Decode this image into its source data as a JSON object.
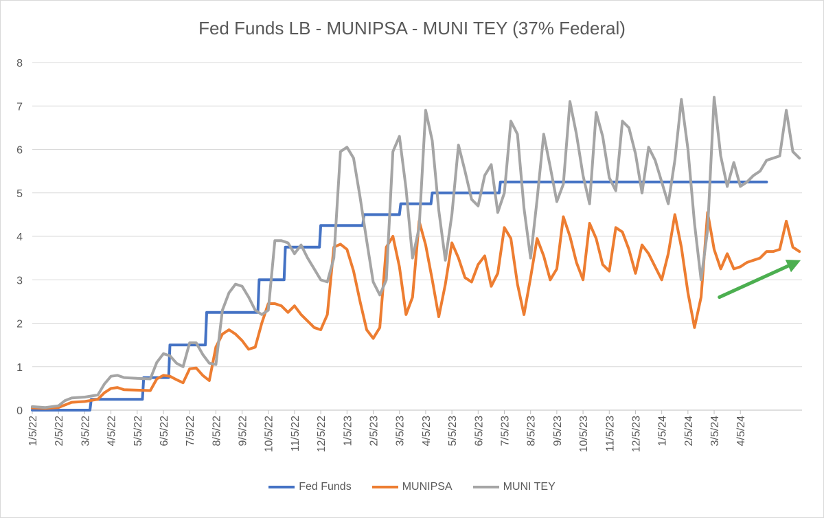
{
  "chart_data": {
    "type": "line",
    "title": "Fed Funds LB - MUNIPSA - MUNI TEY (37% Federal)",
    "xlabel": "",
    "ylabel": "",
    "ylim": [
      0,
      8
    ],
    "yticks": [
      "0",
      "1",
      "2",
      "3",
      "4",
      "5",
      "6",
      "7",
      "8"
    ],
    "xticks": [
      "1/5/22",
      "2/5/22",
      "3/5/22",
      "4/5/22",
      "5/5/22",
      "6/5/22",
      "7/5/22",
      "8/5/22",
      "9/5/22",
      "10/5/22",
      "11/5/22",
      "12/5/22",
      "1/5/23",
      "2/5/23",
      "3/5/23",
      "4/5/23",
      "5/5/23",
      "6/5/23",
      "7/5/23",
      "8/5/23",
      "9/5/23",
      "10/5/23",
      "11/5/23",
      "12/5/23",
      "1/5/24",
      "2/5/24",
      "3/5/24",
      "4/5/24"
    ],
    "x_unit": "months since 1/5/22 (tick index)",
    "grid": true,
    "legend_position": "bottom",
    "series": [
      {
        "name": "Fed Funds",
        "color": "#4472C4",
        "points": [
          [
            0,
            0
          ],
          [
            2.2,
            0
          ],
          [
            2.25,
            0.25
          ],
          [
            4,
            0.25
          ],
          [
            4.2,
            0.25
          ],
          [
            4.25,
            0.75
          ],
          [
            5.2,
            0.75
          ],
          [
            5.25,
            1.5
          ],
          [
            6.6,
            1.5
          ],
          [
            6.65,
            2.25
          ],
          [
            8.6,
            2.25
          ],
          [
            8.65,
            3.0
          ],
          [
            9.6,
            3.0
          ],
          [
            9.65,
            3.75
          ],
          [
            10.95,
            3.75
          ],
          [
            11.0,
            4.25
          ],
          [
            12.6,
            4.25
          ],
          [
            12.65,
            4.5
          ],
          [
            14.0,
            4.5
          ],
          [
            14.05,
            4.75
          ],
          [
            15.2,
            4.75
          ],
          [
            15.25,
            5.0
          ],
          [
            17.8,
            5.0
          ],
          [
            17.85,
            5.25
          ],
          [
            28.0,
            5.25
          ]
        ]
      },
      {
        "name": "MUNIPSA",
        "color": "#ED7D31",
        "points": [
          [
            0,
            0.05
          ],
          [
            0.5,
            0.04
          ],
          [
            1.0,
            0.06
          ],
          [
            1.5,
            0.18
          ],
          [
            2.0,
            0.2
          ],
          [
            2.5,
            0.25
          ],
          [
            2.75,
            0.4
          ],
          [
            3.0,
            0.5
          ],
          [
            3.25,
            0.52
          ],
          [
            3.5,
            0.47
          ],
          [
            4.0,
            0.46
          ],
          [
            4.5,
            0.45
          ],
          [
            4.75,
            0.72
          ],
          [
            5.0,
            0.8
          ],
          [
            5.25,
            0.78
          ],
          [
            5.5,
            0.7
          ],
          [
            5.75,
            0.63
          ],
          [
            6.0,
            0.95
          ],
          [
            6.25,
            0.97
          ],
          [
            6.5,
            0.8
          ],
          [
            6.75,
            0.68
          ],
          [
            7.0,
            1.45
          ],
          [
            7.25,
            1.75
          ],
          [
            7.5,
            1.85
          ],
          [
            7.75,
            1.75
          ],
          [
            8.0,
            1.6
          ],
          [
            8.25,
            1.4
          ],
          [
            8.5,
            1.45
          ],
          [
            8.75,
            2.0
          ],
          [
            9.0,
            2.45
          ],
          [
            9.25,
            2.45
          ],
          [
            9.5,
            2.4
          ],
          [
            9.75,
            2.25
          ],
          [
            10.0,
            2.4
          ],
          [
            10.25,
            2.2
          ],
          [
            10.5,
            2.05
          ],
          [
            10.75,
            1.9
          ],
          [
            11.0,
            1.85
          ],
          [
            11.25,
            2.2
          ],
          [
            11.5,
            3.75
          ],
          [
            11.75,
            3.82
          ],
          [
            12.0,
            3.7
          ],
          [
            12.25,
            3.2
          ],
          [
            12.5,
            2.5
          ],
          [
            12.75,
            1.85
          ],
          [
            13.0,
            1.65
          ],
          [
            13.25,
            1.9
          ],
          [
            13.5,
            3.75
          ],
          [
            13.75,
            4.0
          ],
          [
            14.0,
            3.3
          ],
          [
            14.25,
            2.2
          ],
          [
            14.5,
            2.6
          ],
          [
            14.75,
            4.35
          ],
          [
            15.0,
            3.8
          ],
          [
            15.25,
            3.0
          ],
          [
            15.5,
            2.15
          ],
          [
            15.75,
            2.9
          ],
          [
            16.0,
            3.85
          ],
          [
            16.25,
            3.5
          ],
          [
            16.5,
            3.05
          ],
          [
            16.75,
            2.95
          ],
          [
            17.0,
            3.35
          ],
          [
            17.25,
            3.55
          ],
          [
            17.5,
            2.85
          ],
          [
            17.75,
            3.15
          ],
          [
            18.0,
            4.2
          ],
          [
            18.25,
            3.95
          ],
          [
            18.5,
            2.9
          ],
          [
            18.75,
            2.2
          ],
          [
            19.0,
            3.05
          ],
          [
            19.25,
            3.95
          ],
          [
            19.5,
            3.55
          ],
          [
            19.75,
            3.0
          ],
          [
            20.0,
            3.25
          ],
          [
            20.25,
            4.45
          ],
          [
            20.5,
            4.0
          ],
          [
            20.75,
            3.4
          ],
          [
            21.0,
            3.0
          ],
          [
            21.25,
            4.3
          ],
          [
            21.5,
            3.95
          ],
          [
            21.75,
            3.35
          ],
          [
            22.0,
            3.2
          ],
          [
            22.25,
            4.2
          ],
          [
            22.5,
            4.1
          ],
          [
            22.75,
            3.7
          ],
          [
            23.0,
            3.15
          ],
          [
            23.25,
            3.8
          ],
          [
            23.5,
            3.6
          ],
          [
            23.75,
            3.3
          ],
          [
            24.0,
            3.0
          ],
          [
            24.25,
            3.6
          ],
          [
            24.5,
            4.5
          ],
          [
            24.75,
            3.75
          ],
          [
            25.0,
            2.7
          ],
          [
            25.25,
            1.9
          ],
          [
            25.5,
            2.6
          ],
          [
            25.75,
            4.55
          ],
          [
            26.0,
            3.7
          ],
          [
            26.25,
            3.25
          ],
          [
            26.5,
            3.6
          ],
          [
            26.75,
            3.25
          ],
          [
            27.0,
            3.3
          ],
          [
            27.25,
            3.4
          ],
          [
            27.5,
            3.45
          ],
          [
            27.75,
            3.5
          ],
          [
            28.0,
            3.65
          ],
          [
            28.25,
            3.65
          ],
          [
            28.5,
            3.7
          ],
          [
            28.75,
            4.35
          ],
          [
            29.0,
            3.75
          ],
          [
            29.25,
            3.65
          ]
        ]
      },
      {
        "name": "MUNI TEY",
        "color": "#A5A5A5",
        "points": [
          [
            0,
            0.08
          ],
          [
            0.5,
            0.06
          ],
          [
            1.0,
            0.1
          ],
          [
            1.25,
            0.22
          ],
          [
            1.5,
            0.28
          ],
          [
            2.0,
            0.3
          ],
          [
            2.5,
            0.35
          ],
          [
            2.75,
            0.6
          ],
          [
            3.0,
            0.78
          ],
          [
            3.25,
            0.8
          ],
          [
            3.5,
            0.75
          ],
          [
            4.0,
            0.73
          ],
          [
            4.5,
            0.72
          ],
          [
            4.75,
            1.1
          ],
          [
            5.0,
            1.3
          ],
          [
            5.25,
            1.25
          ],
          [
            5.5,
            1.08
          ],
          [
            5.75,
            1.0
          ],
          [
            6.0,
            1.55
          ],
          [
            6.25,
            1.55
          ],
          [
            6.5,
            1.28
          ],
          [
            6.75,
            1.08
          ],
          [
            7.0,
            1.05
          ],
          [
            7.25,
            2.3
          ],
          [
            7.5,
            2.7
          ],
          [
            7.75,
            2.9
          ],
          [
            8.0,
            2.85
          ],
          [
            8.25,
            2.6
          ],
          [
            8.5,
            2.3
          ],
          [
            8.75,
            2.2
          ],
          [
            9.0,
            2.3
          ],
          [
            9.25,
            3.9
          ],
          [
            9.5,
            3.9
          ],
          [
            9.75,
            3.85
          ],
          [
            10.0,
            3.6
          ],
          [
            10.25,
            3.8
          ],
          [
            10.5,
            3.5
          ],
          [
            10.75,
            3.25
          ],
          [
            11.0,
            3.0
          ],
          [
            11.25,
            2.95
          ],
          [
            11.5,
            3.5
          ],
          [
            11.75,
            5.95
          ],
          [
            12.0,
            6.05
          ],
          [
            12.25,
            5.8
          ],
          [
            12.5,
            4.9
          ],
          [
            12.75,
            3.9
          ],
          [
            13.0,
            2.95
          ],
          [
            13.25,
            2.65
          ],
          [
            13.5,
            3.0
          ],
          [
            13.75,
            5.95
          ],
          [
            14.0,
            6.3
          ],
          [
            14.25,
            5.1
          ],
          [
            14.5,
            3.5
          ],
          [
            14.75,
            4.2
          ],
          [
            15.0,
            6.9
          ],
          [
            15.25,
            6.2
          ],
          [
            15.5,
            4.6
          ],
          [
            15.75,
            3.45
          ],
          [
            16.0,
            4.5
          ],
          [
            16.25,
            6.1
          ],
          [
            16.5,
            5.5
          ],
          [
            16.75,
            4.85
          ],
          [
            17.0,
            4.7
          ],
          [
            17.25,
            5.4
          ],
          [
            17.5,
            5.65
          ],
          [
            17.75,
            4.55
          ],
          [
            18.0,
            5.0
          ],
          [
            18.25,
            6.65
          ],
          [
            18.5,
            6.35
          ],
          [
            18.75,
            4.65
          ],
          [
            19.0,
            3.5
          ],
          [
            19.25,
            4.85
          ],
          [
            19.5,
            6.35
          ],
          [
            19.75,
            5.6
          ],
          [
            20.0,
            4.8
          ],
          [
            20.25,
            5.2
          ],
          [
            20.5,
            7.1
          ],
          [
            20.75,
            6.35
          ],
          [
            21.0,
            5.4
          ],
          [
            21.25,
            4.75
          ],
          [
            21.5,
            6.85
          ],
          [
            21.75,
            6.3
          ],
          [
            22.0,
            5.35
          ],
          [
            22.25,
            5.05
          ],
          [
            22.5,
            6.65
          ],
          [
            22.75,
            6.5
          ],
          [
            23.0,
            5.9
          ],
          [
            23.25,
            5.0
          ],
          [
            23.5,
            6.05
          ],
          [
            23.75,
            5.75
          ],
          [
            24.0,
            5.25
          ],
          [
            24.25,
            4.75
          ],
          [
            24.5,
            5.75
          ],
          [
            24.75,
            7.15
          ],
          [
            25.0,
            6.0
          ],
          [
            25.25,
            4.3
          ],
          [
            25.5,
            3.0
          ],
          [
            25.75,
            4.15
          ],
          [
            26.0,
            7.2
          ],
          [
            26.25,
            5.85
          ],
          [
            26.5,
            5.15
          ],
          [
            26.75,
            5.7
          ],
          [
            27.0,
            5.15
          ],
          [
            27.25,
            5.25
          ],
          [
            27.5,
            5.4
          ],
          [
            27.75,
            5.5
          ],
          [
            28.0,
            5.75
          ],
          [
            28.25,
            5.8
          ],
          [
            28.5,
            5.85
          ],
          [
            28.75,
            6.9
          ],
          [
            29.0,
            5.95
          ],
          [
            29.25,
            5.8
          ]
        ]
      }
    ],
    "annotation_arrow": {
      "color": "#4CAF50",
      "from": [
        26.2,
        2.6
      ],
      "to": [
        29.3,
        3.45
      ]
    }
  }
}
